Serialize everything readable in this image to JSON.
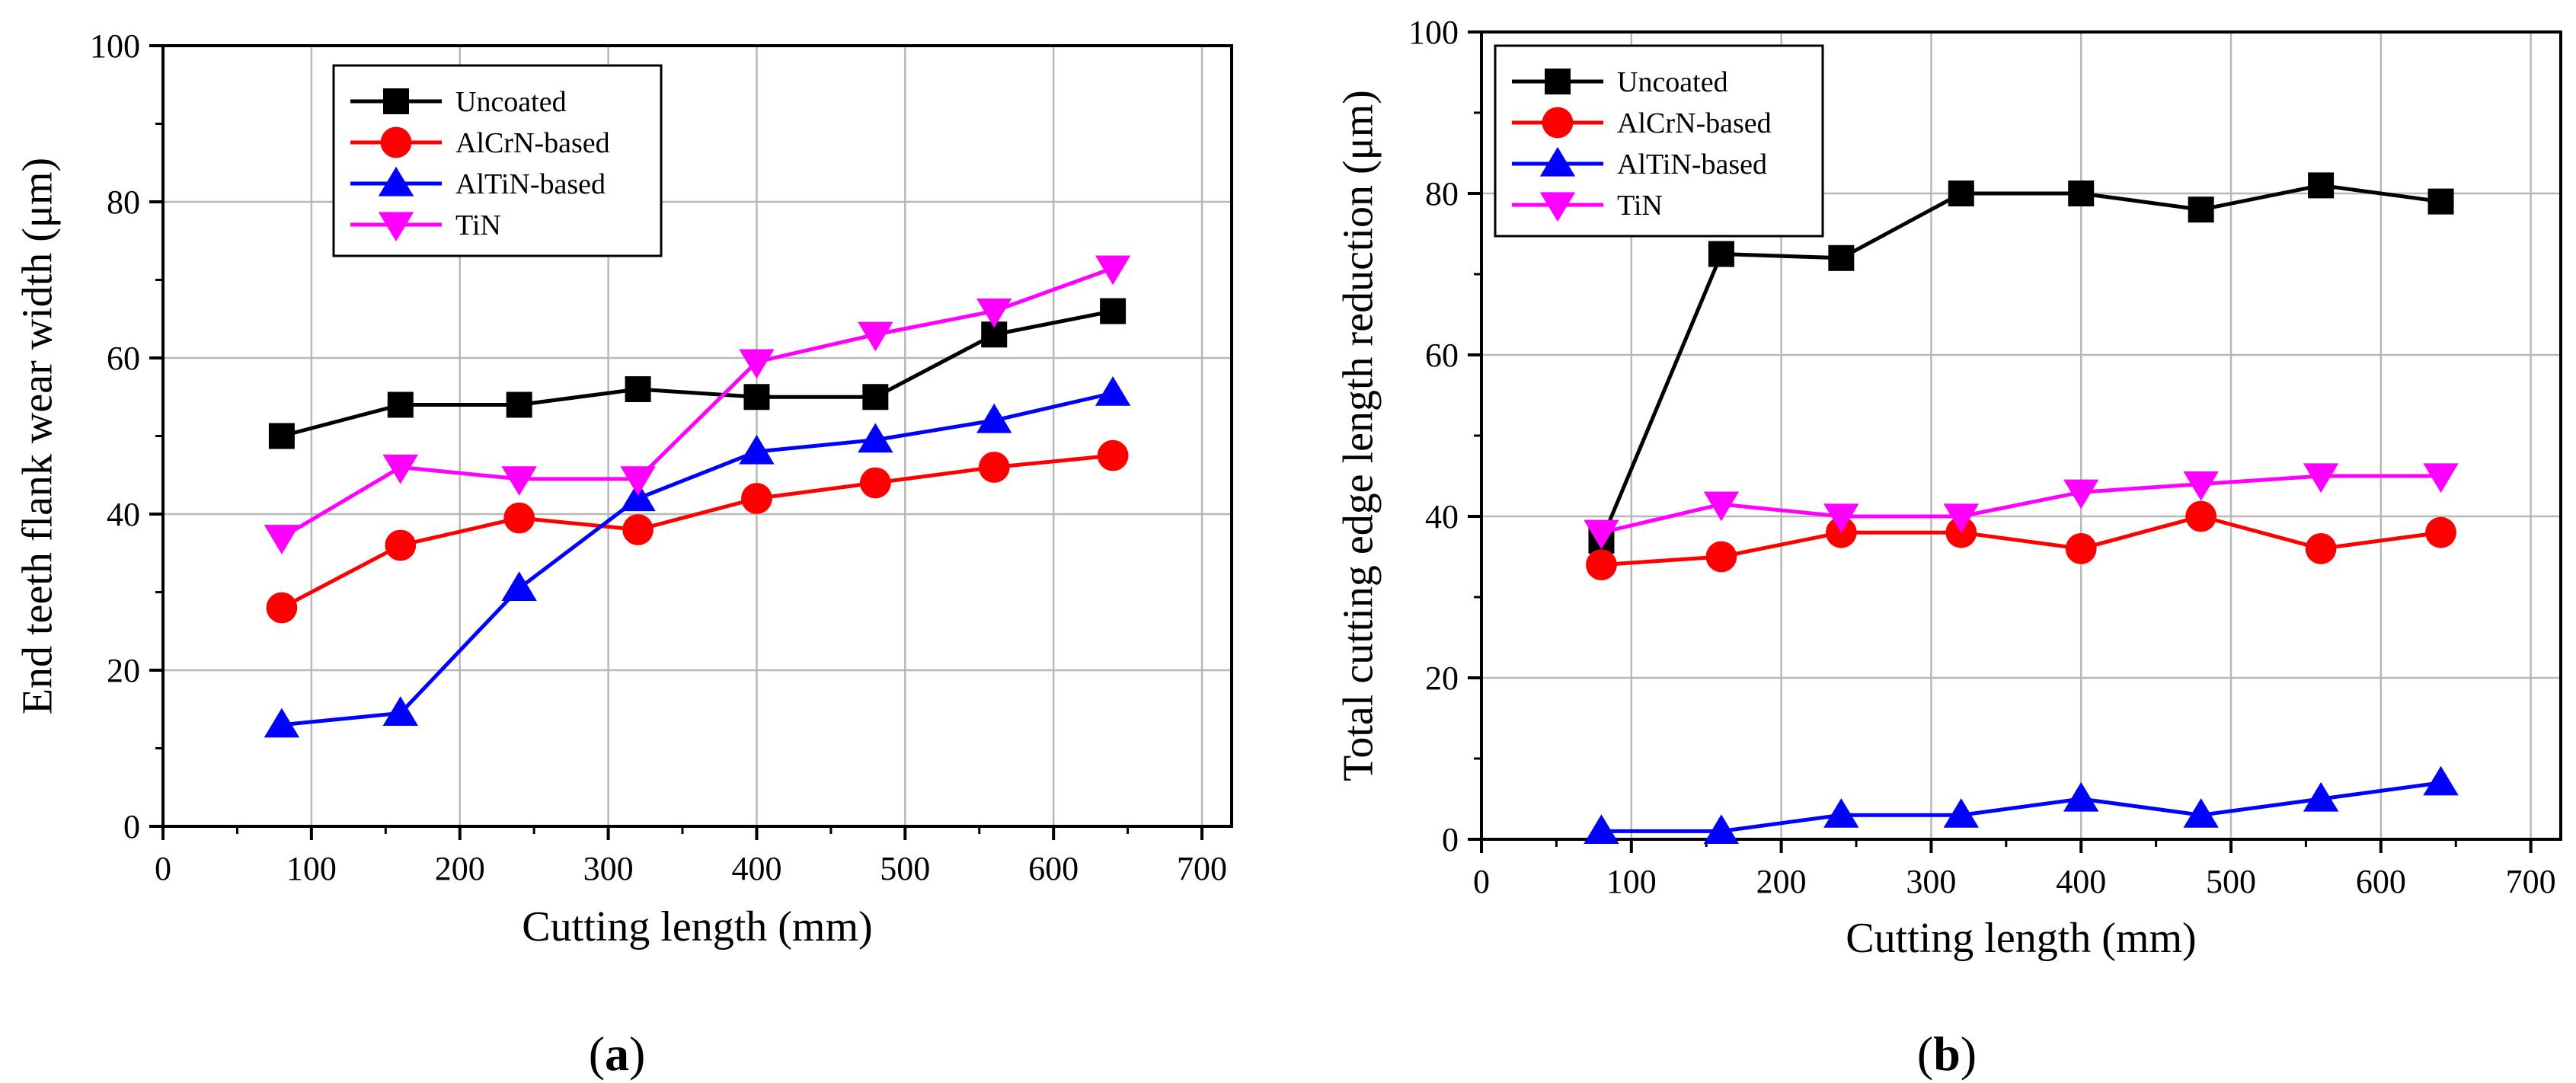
{
  "chart_data": [
    {
      "id": "a",
      "type": "line",
      "caption": "a",
      "title": "",
      "xlabel": "Cutting length (mm)",
      "ylabel": "End teeth flank wear width (μm)",
      "xlim": [
        0,
        720
      ],
      "ylim": [
        0,
        100
      ],
      "xticks": [
        0,
        100,
        200,
        300,
        400,
        500,
        600,
        700
      ],
      "yticks": [
        0,
        20,
        40,
        60,
        80,
        100
      ],
      "grid": true,
      "legend_position": "top-left",
      "x": [
        80,
        160,
        240,
        320,
        400,
        480,
        560,
        640
      ],
      "series": [
        {
          "name": "Uncoated",
          "color": "#000000",
          "marker": "square",
          "values": [
            50,
            54,
            54,
            56,
            55,
            55,
            63,
            66
          ]
        },
        {
          "name": "AlCrN-based",
          "color": "#ff0000",
          "marker": "circle",
          "values": [
            28,
            36,
            39.5,
            38,
            42,
            44,
            46,
            47.5
          ]
        },
        {
          "name": "AlTiN-based",
          "color": "#0000ff",
          "marker": "triangle-up",
          "values": [
            13,
            14.5,
            30.5,
            42,
            48,
            49.5,
            52,
            55.5
          ]
        },
        {
          "name": "TiN",
          "color": "#ff00ff",
          "marker": "triangle-down",
          "values": [
            37,
            46,
            44.5,
            44.5,
            59.5,
            63,
            66,
            71.5
          ]
        }
      ]
    },
    {
      "id": "b",
      "type": "line",
      "caption": "b",
      "title": "",
      "xlabel": "Cutting length (mm)",
      "ylabel": "Total cutting edge length reduction (μm)",
      "xlim": [
        0,
        720
      ],
      "ylim": [
        0,
        100
      ],
      "xticks": [
        0,
        100,
        200,
        300,
        400,
        500,
        600,
        700
      ],
      "yticks": [
        0,
        20,
        40,
        60,
        80,
        100
      ],
      "grid": true,
      "legend_position": "top-left",
      "x": [
        80,
        160,
        240,
        320,
        400,
        480,
        560,
        640
      ],
      "series": [
        {
          "name": "Uncoated",
          "color": "#000000",
          "marker": "square",
          "values": [
            37,
            72.5,
            72,
            80,
            80,
            78,
            81,
            79
          ]
        },
        {
          "name": "AlCrN-based",
          "color": "#ff0000",
          "marker": "circle",
          "values": [
            34,
            35,
            38,
            38,
            36,
            40,
            36,
            38
          ]
        },
        {
          "name": "AlTiN-based",
          "color": "#0000ff",
          "marker": "triangle-up",
          "values": [
            1,
            1,
            3,
            3,
            5,
            3,
            5,
            7
          ]
        },
        {
          "name": "TiN",
          "color": "#ff00ff",
          "marker": "triangle-down",
          "values": [
            38,
            41.5,
            40,
            40,
            43,
            44,
            45,
            45
          ]
        }
      ]
    }
  ]
}
